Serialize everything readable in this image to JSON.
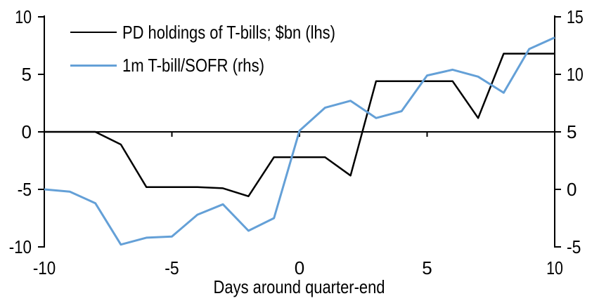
{
  "chart_data": {
    "type": "line",
    "title": "",
    "xlabel": "Days around quarter-end",
    "x": [
      -10,
      -9,
      -8,
      -7,
      -6,
      -5,
      -4,
      -3,
      -2,
      -1,
      0,
      1,
      2,
      3,
      4,
      5,
      6,
      7,
      8,
      9,
      10
    ],
    "x_ticks": [
      -10,
      -5,
      0,
      5,
      10
    ],
    "left_axis": {
      "ticks": [
        10,
        5,
        0,
        -5,
        -10
      ],
      "lim": [
        -10,
        10
      ],
      "side": "lhs"
    },
    "right_axis": {
      "ticks": [
        15,
        10,
        5,
        0,
        -5
      ],
      "lim": [
        -5,
        15
      ],
      "side": "rhs"
    },
    "grid": false,
    "legend_position": "top-left-inside",
    "axis_color": "#000000",
    "background_color": "#ffffff",
    "series": [
      {
        "name": "PD holdings of T-bills; $bn (lhs)",
        "axis": "left",
        "color": "#000000",
        "values": [
          0.0,
          0.0,
          0.0,
          -1.1,
          -4.8,
          -4.8,
          -4.8,
          -4.9,
          -5.6,
          -2.2,
          -2.2,
          -2.2,
          -3.8,
          4.4,
          4.4,
          4.4,
          4.4,
          1.2,
          6.8,
          6.8,
          6.8
        ]
      },
      {
        "name": "1m T-bill/SOFR (rhs)",
        "axis": "right",
        "color": "#64A0D7",
        "values": [
          0.0,
          -0.2,
          -1.2,
          -4.8,
          -4.2,
          -4.1,
          -2.2,
          -1.3,
          -3.6,
          -2.5,
          5.1,
          7.1,
          7.7,
          6.2,
          6.8,
          9.9,
          10.4,
          9.8,
          8.4,
          12.2,
          13.2
        ]
      }
    ]
  }
}
